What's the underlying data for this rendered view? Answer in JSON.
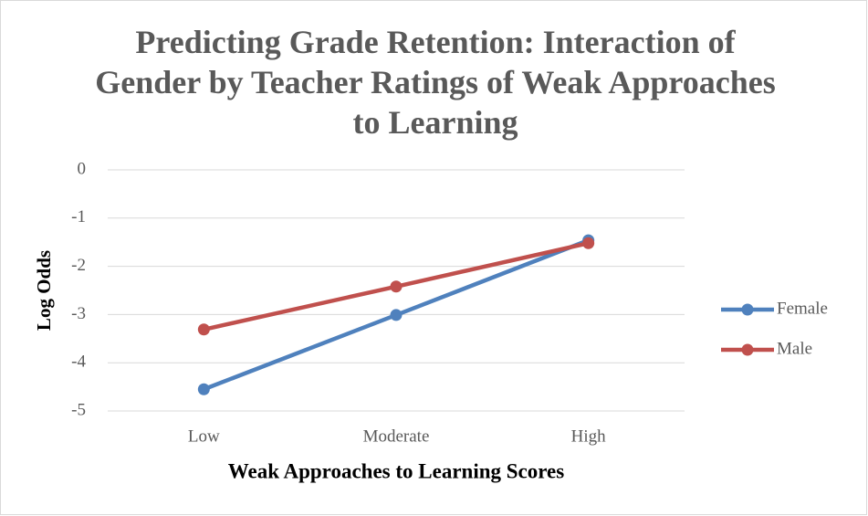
{
  "chart_data": {
    "type": "line",
    "title": "Predicting Grade Retention: Interaction of Gender by Teacher Ratings of Weak Approaches to Learning",
    "x_label": "Weak Approaches to Learning Scores",
    "y_label": "Log Odds",
    "categories": [
      "Low",
      "Moderate",
      "High"
    ],
    "series": [
      {
        "name": "Female",
        "color": "#4f81bd",
        "values": [
          -4.55,
          -3.01,
          -1.46
        ]
      },
      {
        "name": "Male",
        "color": "#c0504d",
        "values": [
          -3.31,
          -2.42,
          -1.52
        ]
      }
    ],
    "ylim": [
      -5,
      0
    ],
    "yticks": [
      0,
      -1,
      -2,
      -3,
      -4,
      -5
    ],
    "grid": true,
    "legend": "right"
  }
}
